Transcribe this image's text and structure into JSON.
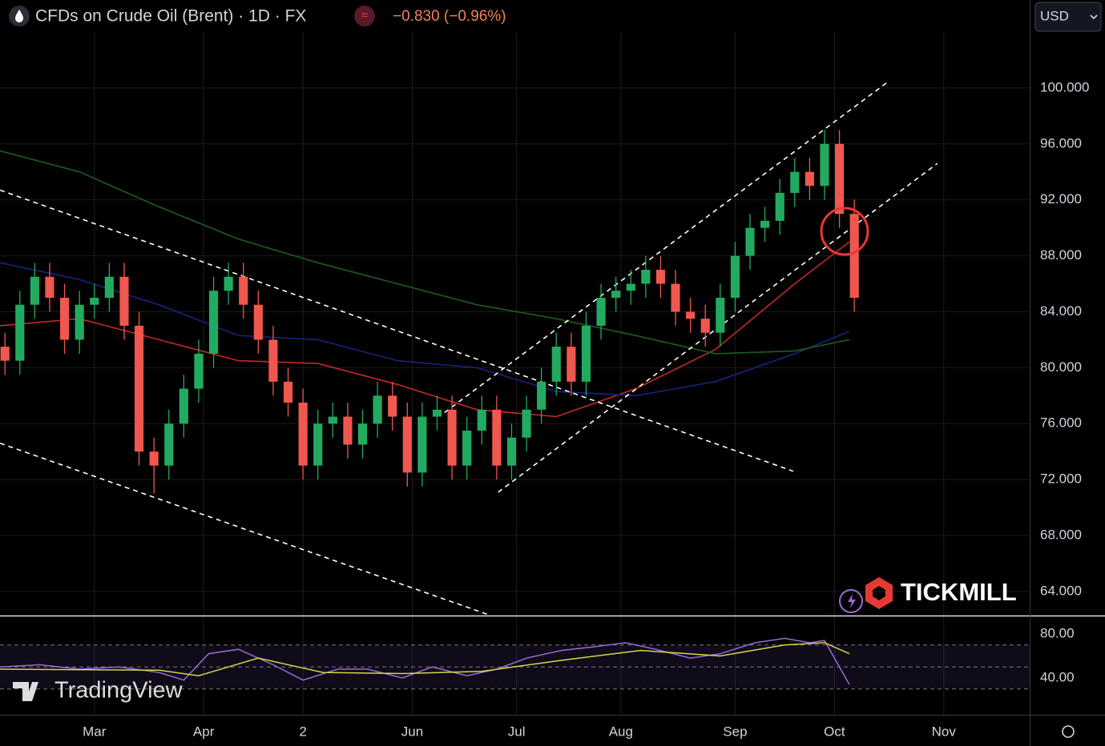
{
  "header": {
    "title": "CFDs on Crude Oil (Brent) · 1D · FX",
    "icon": "≈",
    "change": "−0.830 (−0.96%)",
    "currency": "USD"
  },
  "watermarks": {
    "broker": "TICKMILL",
    "platform": "TradingView"
  },
  "chart_data": [
    {
      "type": "candlestick",
      "up_color": "#22ab60",
      "down_color": "#f0574f",
      "grid": true,
      "xlim": [
        0,
        207.3
      ],
      "ylim": [
        62.28,
        104
      ],
      "xticks": [
        {
          "value": 19,
          "label": "Mar"
        },
        {
          "value": 41,
          "label": "Apr"
        },
        {
          "value": 61,
          "label": "2"
        },
        {
          "value": 83,
          "label": "Jun"
        },
        {
          "value": 104,
          "label": "Jul"
        },
        {
          "value": 125,
          "label": "Aug"
        },
        {
          "value": 148,
          "label": "Sep"
        },
        {
          "value": 168,
          "label": "Oct"
        },
        {
          "value": 190,
          "label": "Nov"
        }
      ],
      "yticks": [
        {
          "value": 100,
          "label": "100.000"
        },
        {
          "value": 96,
          "label": "96.000"
        },
        {
          "value": 92,
          "label": "92.000"
        },
        {
          "value": 88,
          "label": "88.000"
        },
        {
          "value": 84,
          "label": "84.000"
        },
        {
          "value": 80,
          "label": "80.000"
        },
        {
          "value": 76,
          "label": "76.000"
        },
        {
          "value": 72,
          "label": "72.000"
        },
        {
          "value": 68,
          "label": "68.000"
        },
        {
          "value": 64,
          "label": "64.000"
        }
      ],
      "x": [
        1,
        4,
        7,
        10,
        13,
        16,
        19,
        22,
        25,
        28,
        31,
        34,
        37,
        40,
        43,
        46,
        49,
        52,
        55,
        58,
        61,
        64,
        67,
        70,
        73,
        76,
        79,
        82,
        85,
        88,
        91,
        94,
        97,
        100,
        103,
        106,
        109,
        112,
        115,
        118,
        121,
        124,
        127,
        130,
        133,
        136,
        139,
        142,
        145,
        148,
        151,
        154,
        157,
        160,
        163,
        166,
        169,
        172
      ],
      "open": [
        81.5,
        80.5,
        84.5,
        86.5,
        85,
        82,
        84.5,
        85,
        86.5,
        83,
        74,
        73,
        76,
        78.5,
        81,
        85.5,
        86.5,
        84.5,
        82,
        79,
        77.5,
        73,
        76,
        76.5,
        74.5,
        76,
        78,
        76.5,
        72.5,
        76.5,
        77,
        73,
        75.5,
        77,
        73,
        75,
        77,
        79,
        81.5,
        79,
        83,
        85,
        85.5,
        86,
        87,
        86,
        84,
        83.5,
        82.5,
        85,
        88,
        90,
        90.5,
        92.5,
        94,
        93,
        96,
        91
      ],
      "high": [
        82.5,
        85.5,
        87.5,
        87.5,
        86,
        85.5,
        86,
        87.5,
        87.5,
        84,
        75,
        77,
        79.5,
        82,
        86.5,
        87.5,
        87.5,
        85.5,
        83,
        80,
        78.5,
        77,
        77.5,
        77.5,
        77,
        79,
        79,
        77.5,
        77.5,
        78,
        78,
        76.5,
        78,
        78,
        76,
        78,
        80,
        82.5,
        82.5,
        84,
        86,
        86.5,
        87,
        88,
        88,
        87,
        85,
        84.5,
        86,
        89,
        91,
        91.5,
        93.5,
        95,
        95,
        97,
        97,
        92
      ],
      "low": [
        79.5,
        79.5,
        83.5,
        84,
        81,
        81,
        83.5,
        84,
        82,
        73,
        71,
        72,
        75,
        77.5,
        80,
        84.5,
        83.5,
        81,
        78,
        76.5,
        72,
        72,
        75,
        73.5,
        73.5,
        75,
        75.5,
        71.5,
        71.5,
        75.5,
        72,
        72,
        74.5,
        72,
        72,
        74,
        76,
        78,
        78,
        78,
        82,
        84,
        84.5,
        85,
        85,
        83,
        82.5,
        81.5,
        81.5,
        84,
        87,
        89,
        89.5,
        91.5,
        92,
        92,
        90,
        84
      ],
      "close": [
        80.5,
        84.5,
        86.5,
        85,
        82,
        84.5,
        85,
        86.5,
        83,
        74,
        73,
        76,
        78.5,
        81,
        85.5,
        86.5,
        84.5,
        82,
        79,
        77.5,
        73,
        76,
        76.5,
        74.5,
        76,
        78,
        76.5,
        72.5,
        76.5,
        77,
        73,
        75.5,
        77,
        73,
        75,
        77,
        79,
        81.5,
        79,
        83,
        85,
        85.5,
        86,
        87,
        86,
        84,
        83.5,
        82.5,
        85,
        88,
        90,
        90.5,
        92.5,
        94,
        93,
        96,
        91,
        85
      ],
      "series": [
        {
          "color": "#c62828",
          "x": [
            0,
            16,
            32,
            48,
            64,
            80,
            96,
            112,
            128,
            144,
            160,
            171
          ],
          "values": [
            83,
            83.5,
            82,
            80.5,
            80.3,
            78.8,
            77,
            76.5,
            78.5,
            81.3,
            86,
            89
          ]
        },
        {
          "color": "#1a237e",
          "x": [
            0,
            16,
            32,
            48,
            64,
            80,
            96,
            112,
            128,
            144,
            160,
            171
          ],
          "values": [
            87.5,
            86.3,
            84.5,
            82.3,
            82,
            80.5,
            80,
            78.3,
            78,
            79,
            81,
            82.6
          ]
        },
        {
          "color": "#1b5e20",
          "x": [
            0,
            16,
            32,
            48,
            64,
            80,
            96,
            112,
            128,
            144,
            160,
            171
          ],
          "values": [
            95.5,
            94,
            91.5,
            89.2,
            87.5,
            86,
            84.5,
            83.5,
            82.3,
            81,
            81.2,
            82
          ]
        }
      ],
      "trendlines": [
        {
          "x": [
            89.5,
            179
          ],
          "y": [
            76.8,
            100.5
          ]
        },
        {
          "x": [
            100.3,
            188.7
          ],
          "y": [
            71.1,
            94.6
          ]
        },
        {
          "x": [
            0,
            159.7
          ],
          "y": [
            92.7,
            72.6
          ]
        },
        {
          "x": [
            0,
            98.7
          ],
          "y": [
            74.6,
            62.3
          ]
        }
      ]
    },
    {
      "type": "line",
      "ylim": [
        6.5,
        96
      ],
      "yticks": [
        {
          "value": 80,
          "label": "80.00"
        },
        {
          "value": 40,
          "label": "40.00"
        }
      ],
      "levels": [
        70,
        50,
        30
      ],
      "series": [
        {
          "color": "#9c6ad6",
          "x": [
            0,
            8,
            16,
            24,
            32,
            37,
            42,
            48,
            55,
            61,
            68,
            74,
            81,
            87,
            94,
            100,
            106,
            113,
            119,
            126,
            132,
            139,
            145,
            152,
            158,
            163,
            166,
            169,
            171
          ],
          "values": [
            50,
            52,
            48,
            50,
            45,
            38,
            62,
            66,
            52,
            38,
            48,
            48,
            40,
            50,
            42,
            48,
            58,
            65,
            68,
            72,
            66,
            58,
            62,
            72,
            76,
            72,
            74,
            50,
            34
          ]
        },
        {
          "color": "#d4d64a",
          "x": [
            0,
            32,
            40,
            52,
            65,
            81,
            97,
            113,
            129,
            145,
            158,
            166,
            171
          ],
          "values": [
            48,
            47,
            42,
            58,
            45,
            44,
            46,
            56,
            65,
            60,
            70,
            72,
            62
          ]
        }
      ]
    }
  ]
}
